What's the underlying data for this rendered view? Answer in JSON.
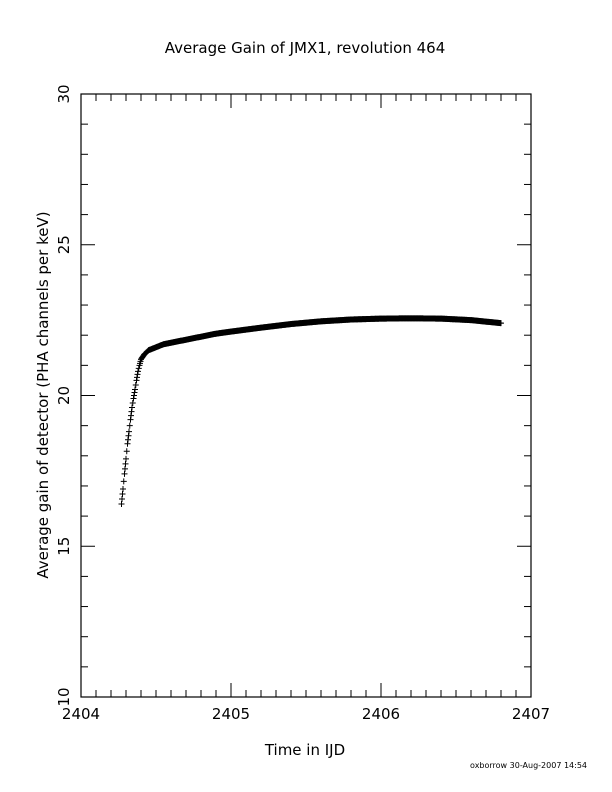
{
  "chart_data": {
    "type": "scatter",
    "title": "Average Gain of JMX1, revolution 464",
    "xlabel": "Time in IJD",
    "ylabel": "Average gain of detector (PHA channels per keV)",
    "xlim": [
      2404,
      2407
    ],
    "ylim": [
      10,
      30
    ],
    "x_ticks": [
      2404,
      2405,
      2406,
      2407
    ],
    "y_ticks": [
      10,
      15,
      20,
      25,
      30
    ],
    "x_tick_labels": [
      "2404",
      "2405",
      "2406",
      "2407"
    ],
    "y_tick_labels": [
      "10",
      "15",
      "20",
      "25",
      "30"
    ],
    "marker": "plus",
    "grid": false,
    "series": [
      {
        "x": [
          2404.27,
          2404.28,
          2404.29,
          2404.3,
          2404.31,
          2404.32,
          2404.33,
          2404.34,
          2404.35,
          2404.36,
          2404.37,
          2404.38,
          2404.39,
          2404.4,
          2404.42,
          2404.45,
          2404.5,
          2404.55,
          2404.6,
          2404.7,
          2404.8,
          2404.9,
          2405.0,
          2405.2,
          2405.4,
          2405.6,
          2405.8,
          2406.0,
          2406.2,
          2406.4,
          2406.6,
          2406.8
        ],
        "y": [
          16.4,
          16.9,
          17.4,
          17.9,
          18.4,
          18.8,
          19.2,
          19.6,
          19.9,
          20.2,
          20.5,
          20.8,
          21.0,
          21.2,
          21.35,
          21.5,
          21.6,
          21.7,
          21.75,
          21.85,
          21.95,
          22.05,
          22.12,
          22.25,
          22.37,
          22.46,
          22.52,
          22.55,
          22.56,
          22.55,
          22.5,
          22.4
        ]
      }
    ]
  },
  "footer": {
    "stamp": "oxborrow 30-Aug-2007 14:54"
  }
}
